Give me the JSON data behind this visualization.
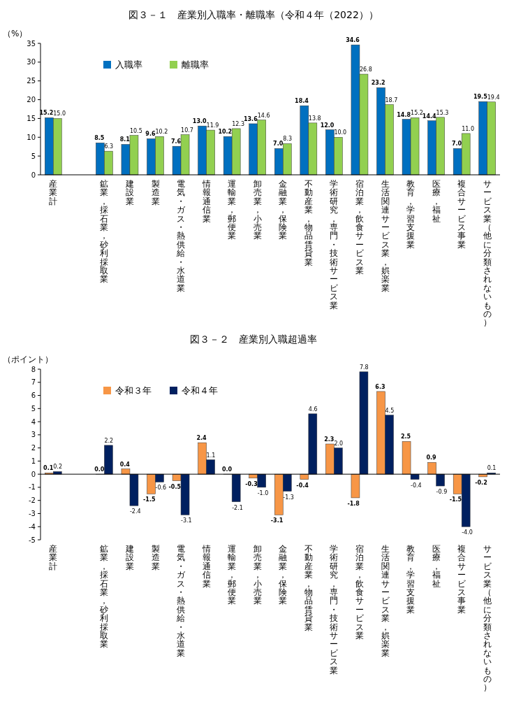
{
  "chart_data": [
    {
      "type": "bar",
      "title": "図３－１　産業別入職率・離職率（令和４年（2022））",
      "ylabel": "（%）",
      "categories": [
        "産業計",
        null,
        "鉱業，採石業，砂利採取業",
        "建設業",
        "製造業",
        "電気・ガス・熱供給・水道業",
        "情報通信業",
        "運輸業，郵便業",
        "卸売業，小売業",
        "金融業，保険業",
        "不動産業，物品賃貸業",
        "学術研究，専門・技術サービス業",
        "宿泊業，飲食サービス業",
        "生活関連サービス業，娯楽業",
        "教育，学習支援業",
        "医療，福祉",
        "複合サービス事業",
        "サービス業（他に分類されないもの）"
      ],
      "series": [
        {
          "name": "入職率",
          "color": "#0070c0",
          "values": [
            15.2,
            null,
            8.5,
            8.1,
            9.6,
            7.6,
            13.0,
            10.2,
            13.6,
            7.0,
            18.4,
            12.0,
            34.6,
            23.2,
            14.8,
            14.4,
            7.0,
            19.5
          ],
          "value_labels": [
            "15.2",
            null,
            "8.5",
            "8.1",
            "9.6",
            "7.6",
            "13.0",
            "10.2",
            "13.6",
            "7.0",
            "18.4",
            "12.0",
            "34.6",
            "23.2",
            "14.8",
            "14.4",
            "7.0",
            "19.5"
          ]
        },
        {
          "name": "離職率",
          "color": "#92d050",
          "values": [
            15.0,
            null,
            6.3,
            10.5,
            10.2,
            10.7,
            11.9,
            12.3,
            14.6,
            8.3,
            13.8,
            10.0,
            26.8,
            18.7,
            15.2,
            15.3,
            11.0,
            19.4
          ],
          "value_labels": [
            "15.0",
            null,
            "6.3",
            "10.5",
            "10.2",
            "10.7",
            "11.9",
            "12.3",
            "14.6",
            "8.3",
            "13.8",
            "10.0",
            "26.8",
            "18.7",
            "15.2",
            "15.3",
            "11.0",
            "19.4"
          ]
        }
      ],
      "ylim": [
        0,
        35
      ],
      "yticks": [
        0,
        5,
        10,
        15,
        20,
        25,
        30,
        35
      ],
      "legend": "top left"
    },
    {
      "type": "bar",
      "title": "図３－２　産業別入職超過率",
      "ylabel": "（ポイント）",
      "categories": [
        "産業計",
        null,
        "鉱業，採石業，砂利採取業",
        "建設業",
        "製造業",
        "電気・ガス・熱供給・水道業",
        "情報通信業",
        "運輸業，郵便業",
        "卸売業，小売業",
        "金融業，保険業",
        "不動産業，物品賃貸業",
        "学術研究，専門・技術サービス業",
        "宿泊業，飲食サービス業",
        "生活関連サービス業，娯楽業",
        "教育，学習支援業",
        "医療，福祉",
        "複合サービス事業",
        "サービス業（他に分類されないもの）"
      ],
      "series": [
        {
          "name": "令和３年",
          "color": "#f79646",
          "values": [
            0.1,
            null,
            0.0,
            0.4,
            -1.5,
            -0.5,
            2.4,
            0.0,
            -0.3,
            -3.1,
            -0.4,
            2.3,
            -1.8,
            6.3,
            2.5,
            0.9,
            -1.5,
            -0.2
          ],
          "value_labels": [
            "0.1",
            null,
            "0.0",
            "0.4",
            "-1.5",
            "-0.5",
            "2.4",
            "0.0",
            "-0.3",
            "-3.1",
            "-0.4",
            "2.3",
            "-1.8",
            "6.3",
            "2.5",
            "0.9",
            "-1.5",
            "-0.2"
          ]
        },
        {
          "name": "令和４年",
          "color": "#002060",
          "values": [
            0.2,
            null,
            2.2,
            -2.4,
            -0.6,
            -3.1,
            1.1,
            -2.1,
            -1.0,
            -1.3,
            4.6,
            2.0,
            7.8,
            4.5,
            -0.4,
            -0.9,
            -4.0,
            0.1
          ],
          "value_labels": [
            "0.2",
            null,
            "2.2",
            "-2.4",
            "-0.6",
            "-3.1",
            "1.1",
            "-2.1",
            "-1.0",
            "-1.3",
            "4.6",
            "2.0",
            "7.8",
            "4.5",
            "-0.4",
            "-0.9",
            "-4.0",
            "0.1"
          ]
        }
      ],
      "ylim": [
        -5,
        8
      ],
      "yticks": [
        -5,
        -4,
        -3,
        -2,
        -1,
        0,
        1,
        2,
        3,
        4,
        5,
        6,
        7,
        8
      ],
      "legend": "top left"
    }
  ]
}
